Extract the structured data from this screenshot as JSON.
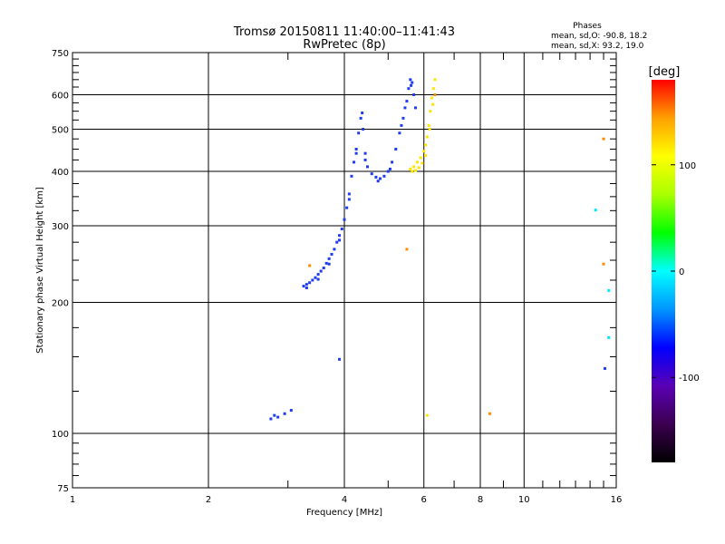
{
  "chart_data": {
    "type": "scatter",
    "title": "Tromsø 20150811 11:40:00–11:41:43",
    "subtitle": "RwPretec (8p)",
    "xlabel": "Frequency [MHz]",
    "ylabel": "Stationary phase Virtual Height [km]",
    "x_scale": "log",
    "y_scale": "log",
    "xlim": [
      1,
      16
    ],
    "ylim": [
      75,
      750
    ],
    "x_ticks": [
      1,
      2,
      4,
      6,
      8,
      10,
      16
    ],
    "x_tick_labels": [
      "1",
      "2",
      "4",
      "6",
      "8",
      "10",
      "16"
    ],
    "y_ticks": [
      75,
      100,
      200,
      300,
      400,
      500,
      600,
      750
    ],
    "y_tick_labels": [
      "75",
      "100",
      "200",
      "300",
      "400",
      "500",
      "600",
      "750"
    ],
    "grid": true,
    "phase_stats": {
      "title": "Phases",
      "line1": "mean, sd,O: -90.8, 18.2",
      "line2": "mean, sd,X:  93.2, 19.0"
    },
    "colorbar": {
      "label": "[deg]",
      "range": [
        -180,
        180
      ],
      "ticks": [
        100,
        0,
        -100
      ],
      "tick_labels": [
        "100",
        "0",
        "-100"
      ],
      "colormap": [
        "#000000",
        "#3c0050",
        "#5a00b4",
        "#0000ff",
        "#0096ff",
        "#00ffff",
        "#00ff00",
        "#aaff00",
        "#ffff00",
        "#ffa000",
        "#ff0000"
      ]
    },
    "series": [
      {
        "trace": "O",
        "color": "#1e3cf0",
        "points": [
          [
            3.25,
            218
          ],
          [
            3.3,
            220
          ],
          [
            3.35,
            222
          ],
          [
            3.4,
            225
          ],
          [
            3.45,
            228
          ],
          [
            3.5,
            232
          ],
          [
            3.55,
            236
          ],
          [
            3.6,
            240
          ],
          [
            3.65,
            246
          ],
          [
            3.7,
            252
          ],
          [
            3.75,
            258
          ],
          [
            3.8,
            265
          ],
          [
            3.85,
            275
          ],
          [
            3.9,
            285
          ],
          [
            3.95,
            295
          ],
          [
            4.0,
            310
          ],
          [
            4.05,
            330
          ],
          [
            4.1,
            355
          ],
          [
            4.15,
            390
          ],
          [
            4.2,
            420
          ],
          [
            4.25,
            450
          ],
          [
            4.3,
            490
          ],
          [
            4.35,
            530
          ],
          [
            4.38,
            545
          ],
          [
            4.4,
            500
          ],
          [
            4.45,
            440
          ],
          [
            4.5,
            410
          ],
          [
            4.6,
            395
          ],
          [
            4.7,
            388
          ],
          [
            4.8,
            385
          ],
          [
            4.9,
            390
          ],
          [
            5.0,
            400
          ],
          [
            5.1,
            420
          ],
          [
            5.2,
            450
          ],
          [
            5.3,
            490
          ],
          [
            5.4,
            530
          ],
          [
            5.5,
            580
          ],
          [
            5.55,
            620
          ],
          [
            5.6,
            650
          ],
          [
            5.65,
            640
          ],
          [
            5.7,
            600
          ],
          [
            5.75,
            560
          ],
          [
            3.3,
            216
          ],
          [
            3.5,
            226
          ],
          [
            3.7,
            245
          ],
          [
            3.9,
            278
          ],
          [
            4.1,
            345
          ],
          [
            4.25,
            440
          ],
          [
            4.45,
            425
          ],
          [
            4.75,
            380
          ],
          [
            5.05,
            405
          ],
          [
            5.35,
            510
          ],
          [
            5.45,
            560
          ],
          [
            5.62,
            630
          ],
          [
            2.75,
            108
          ],
          [
            2.8,
            110
          ],
          [
            2.85,
            109
          ],
          [
            2.95,
            111
          ],
          [
            3.05,
            113
          ],
          [
            3.9,
            148
          ],
          [
            15.1,
            141
          ]
        ]
      },
      {
        "trace": "X",
        "color": "#ffe600",
        "points": [
          [
            5.6,
            405
          ],
          [
            5.7,
            410
          ],
          [
            5.8,
            420
          ],
          [
            5.9,
            430
          ],
          [
            6.0,
            445
          ],
          [
            6.05,
            460
          ],
          [
            6.1,
            480
          ],
          [
            6.15,
            510
          ],
          [
            6.2,
            550
          ],
          [
            6.25,
            590
          ],
          [
            6.3,
            620
          ],
          [
            6.35,
            650
          ],
          [
            5.65,
            400
          ],
          [
            5.75,
            402
          ],
          [
            5.85,
            408
          ],
          [
            5.95,
            418
          ],
          [
            6.05,
            435
          ],
          [
            6.18,
            500
          ],
          [
            6.28,
            570
          ],
          [
            6.1,
            110
          ]
        ]
      },
      {
        "trace": "scattered",
        "color": "#ff8c00",
        "points": [
          [
            3.35,
            243
          ],
          [
            5.5,
            265
          ],
          [
            8.4,
            111
          ],
          [
            6.35,
            600
          ],
          [
            15.0,
            475
          ],
          [
            15.0,
            245
          ]
        ]
      },
      {
        "trace": "scattered-cyan",
        "color": "#00e6ff",
        "points": [
          [
            14.4,
            326
          ],
          [
            15.4,
            213
          ],
          [
            15.4,
            166
          ]
        ]
      }
    ]
  }
}
